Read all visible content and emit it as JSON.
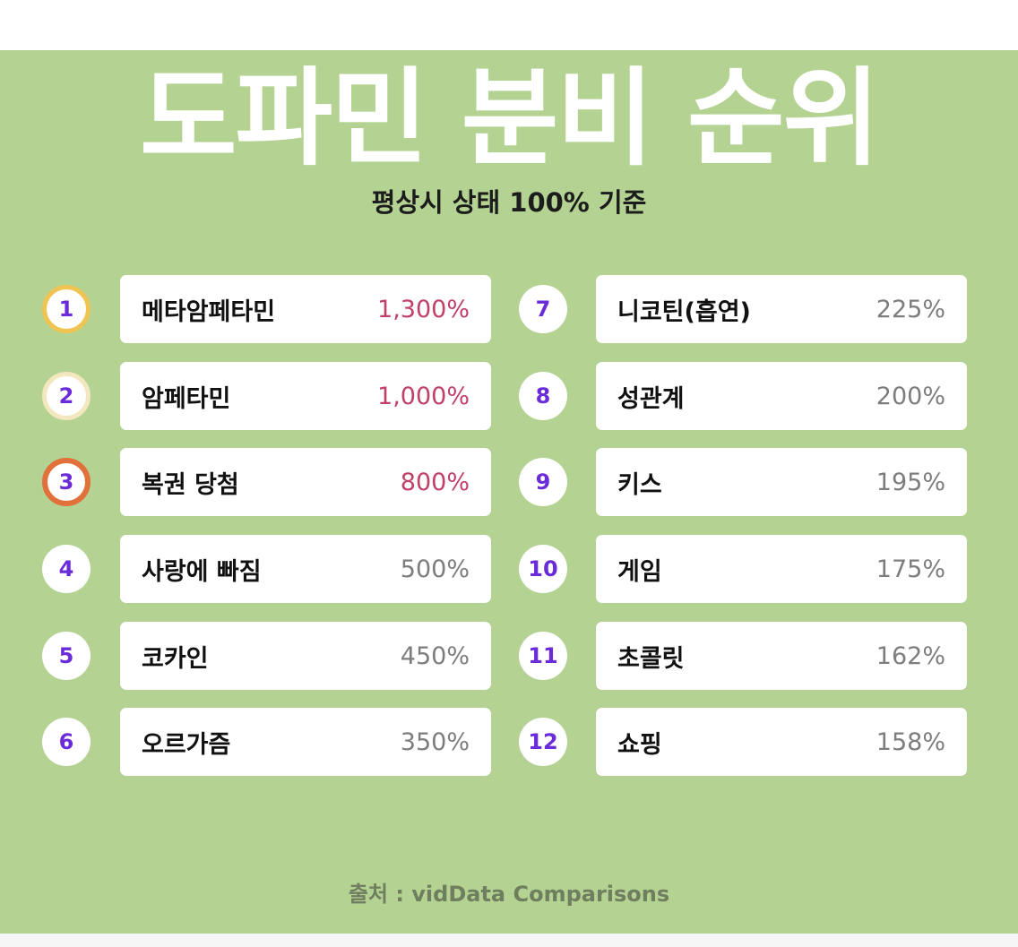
{
  "title": "도파민 분비 순위",
  "subtitle": "평상시 상태 100% 기준",
  "left_items": [
    {
      "rank": "1",
      "name": "메타암페타민",
      "value": "1,300%"
    },
    {
      "rank": "2",
      "name": "암페타민",
      "value": "1,000%"
    },
    {
      "rank": "3",
      "name": "복권 당첨",
      "value": "800%"
    },
    {
      "rank": "4",
      "name": "사랑에 빠짐",
      "value": "500%"
    },
    {
      "rank": "5",
      "name": "코카인",
      "value": "450%"
    },
    {
      "rank": "6",
      "name": "오르가즘",
      "value": "350%"
    }
  ],
  "right_items": [
    {
      "rank": "7",
      "name": "니코틴(흡연)",
      "value": "225%"
    },
    {
      "rank": "8",
      "name": "성관계",
      "value": "200%"
    },
    {
      "rank": "9",
      "name": "키스",
      "value": "195%"
    },
    {
      "rank": "10",
      "name": "게임",
      "value": "175%"
    },
    {
      "rank": "11",
      "name": "초콜릿",
      "value": "162%"
    },
    {
      "rank": "12",
      "name": "쇼핑",
      "value": "158%"
    }
  ],
  "source": "출처 : vidData Comparisons",
  "colors": {
    "background": "#b4d393",
    "rank_text": "#6a2bd9",
    "highlight_value": "#c04068",
    "gold": "#efc453",
    "silver": "#f3e7bf",
    "bronze": "#e2703a"
  }
}
